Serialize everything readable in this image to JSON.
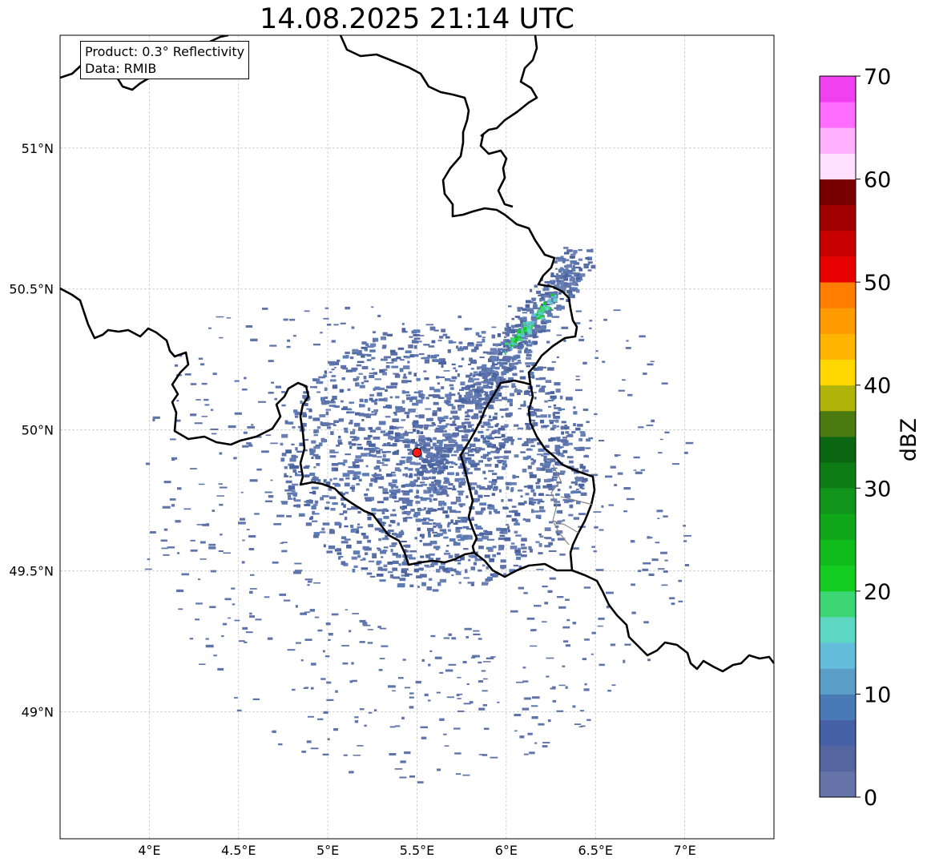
{
  "title": "14.08.2025 21:14 UTC",
  "info": {
    "product": "Product: 0.3° Reflectivity",
    "data": "Data: RMIB"
  },
  "map": {
    "lon_range": [
      3.5,
      7.5
    ],
    "lat_range": [
      48.55,
      51.4
    ],
    "lon_ticks": [
      {
        "value": 4.0,
        "label": "4°E"
      },
      {
        "value": 4.5,
        "label": "4.5°E"
      },
      {
        "value": 5.0,
        "label": "5°E"
      },
      {
        "value": 5.5,
        "label": "5.5°E"
      },
      {
        "value": 6.0,
        "label": "6°E"
      },
      {
        "value": 6.5,
        "label": "6.5°E"
      },
      {
        "value": 7.0,
        "label": "7°E"
      }
    ],
    "lat_ticks": [
      {
        "value": 51.0,
        "label": "51°N"
      },
      {
        "value": 50.5,
        "label": "50.5°N"
      },
      {
        "value": 50.0,
        "label": "50°N"
      },
      {
        "value": 49.5,
        "label": "49.5°N"
      },
      {
        "value": 49.0,
        "label": "49°N"
      }
    ],
    "grid": true,
    "radar_site": {
      "lon": 5.5,
      "lat": 49.92,
      "color": "#ff1a1a"
    }
  },
  "colorbar": {
    "label": "dBZ",
    "min": 0,
    "max": 70,
    "ticks": [
      0,
      10,
      20,
      30,
      40,
      50,
      60,
      70
    ],
    "colors": [
      "#6673a8",
      "#5565a0",
      "#4560a5",
      "#4a7ab5",
      "#5a9ec8",
      "#64bedb",
      "#5ed6c4",
      "#3dd675",
      "#14cc1f",
      "#10bb1c",
      "#10a818",
      "#10941a",
      "#0e7d16",
      "#0a6610",
      "#4a7a10",
      "#b0b40a",
      "#ffd700",
      "#ffb400",
      "#ff9a00",
      "#ff7d00",
      "#e60000",
      "#c80000",
      "#a00000",
      "#780000",
      "#ffe0ff",
      "#ffb0ff",
      "#ff6cff",
      "#f040f0"
    ]
  }
}
